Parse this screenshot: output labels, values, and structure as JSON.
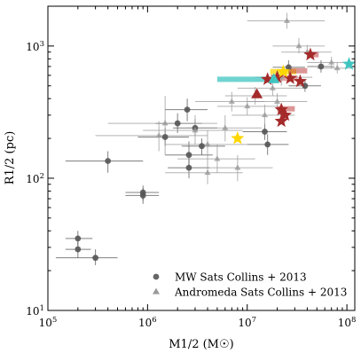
{
  "chart_data": {
    "type": "scatter",
    "xscale": "log",
    "yscale": "log",
    "xlim": [
      100000,
      120000000
    ],
    "ylim": [
      10,
      2000
    ],
    "xlabel": "M1/2 (M☉)",
    "ylabel": "R1/2 (pc)",
    "x_ticks": [
      {
        "value": 100000,
        "base": "10",
        "exp": "5"
      },
      {
        "value": 1000000,
        "base": "10",
        "exp": "6"
      },
      {
        "value": 10000000,
        "base": "10",
        "exp": "7"
      },
      {
        "value": 100000000,
        "base": "10",
        "exp": "8"
      }
    ],
    "y_ticks": [
      {
        "value": 10,
        "base": "10",
        "exp": "1"
      },
      {
        "value": 100,
        "base": "10",
        "exp": "2"
      },
      {
        "value": 1000,
        "base": "10",
        "exp": "3"
      }
    ],
    "legend": {
      "placement": "lower-right",
      "entries": [
        {
          "label": "MW Sats Collins + 2013",
          "marker": "circle",
          "color": "#666666"
        },
        {
          "label": "Andromeda Sats Collins + 2013",
          "marker": "triangle",
          "color": "#9a9a9a"
        }
      ]
    },
    "series": [
      {
        "name": "MW Sats Collins + 2013",
        "marker": "circle",
        "color": "#555555",
        "points": [
          {
            "x": 200000,
            "y": 35,
            "xerr": [
              150000,
              280000
            ],
            "yerr": [
              31,
              40
            ]
          },
          {
            "x": 200000,
            "y": 29,
            "xerr": [
              150000,
              270000
            ],
            "yerr": [
              25,
              33
            ]
          },
          {
            "x": 300000,
            "y": 25,
            "xerr": [
              120000,
              500000
            ],
            "yerr": [
              22,
              29
            ]
          },
          {
            "x": 400000,
            "y": 135,
            "xerr": [
              150000,
              900000
            ],
            "yerr": [
              110,
              160
            ]
          },
          {
            "x": 900000,
            "y": 78,
            "xerr": [
              600000,
              1300000
            ],
            "yerr": [
              68,
              88
            ]
          },
          {
            "x": 900000,
            "y": 74,
            "xerr": [
              600000,
              1300000
            ],
            "yerr": [
              64,
              84
            ]
          },
          {
            "x": 1500000,
            "y": 205,
            "xerr": [
              800000,
              2600000
            ],
            "yerr": [
              175,
              240
            ]
          },
          {
            "x": 2000000,
            "y": 260,
            "xerr": [
              1200000,
              3500000
            ],
            "yerr": [
              220,
              310
            ]
          },
          {
            "x": 2500000,
            "y": 330,
            "xerr": [
              1500000,
              4000000
            ],
            "yerr": [
              270,
              400
            ]
          },
          {
            "x": 2600000,
            "y": 150,
            "xerr": [
              1500000,
              4500000
            ],
            "yerr": [
              120,
              190
            ]
          },
          {
            "x": 2600000,
            "y": 120,
            "xerr": [
              1600000,
              4200000
            ],
            "yerr": [
              100,
              145
            ]
          },
          {
            "x": 3000000,
            "y": 240,
            "xerr": [
              1800000,
              5000000
            ],
            "yerr": [
              210,
              280
            ]
          },
          {
            "x": 3500000,
            "y": 175,
            "xerr": [
              2200000,
              6000000
            ],
            "yerr": [
              150,
              200
            ]
          },
          {
            "x": 15000000,
            "y": 225,
            "xerr": [
              9000000,
              25000000
            ],
            "yerr": [
              195,
              260
            ]
          },
          {
            "x": 16000000,
            "y": 180,
            "xerr": [
              10000000,
              26000000
            ],
            "yerr": [
              150,
              215
            ]
          },
          {
            "x": 26000000,
            "y": 690,
            "xerr": [
              18000000,
              38000000
            ],
            "yerr": [
              610,
              780
            ]
          },
          {
            "x": 38000000,
            "y": 500,
            "xerr": [
              26000000,
              55000000
            ],
            "yerr": [
              450,
              560
            ]
          },
          {
            "x": 55000000,
            "y": 700,
            "xerr": [
              40000000,
              75000000
            ],
            "yerr": [
              630,
              780
            ]
          }
        ]
      },
      {
        "name": "Andromeda Sats Collins + 2013",
        "marker": "triangle",
        "color": "#9a9a9a",
        "points": [
          {
            "x": 1500000,
            "y": 260,
            "xerr": [
              400000,
              5000000
            ],
            "yerr": [
              150,
              420
            ]
          },
          {
            "x": 1300000,
            "y": 210,
            "xerr": [
              300000,
              4000000
            ],
            "yerr": [
              160,
              270
            ]
          },
          {
            "x": 3000000,
            "y": 230,
            "xerr": [
              900000,
              9000000
            ],
            "yerr": [
              180,
              300
            ]
          },
          {
            "x": 4000000,
            "y": 180,
            "xerr": [
              1500000,
              10000000
            ],
            "yerr": [
              140,
              230
            ]
          },
          {
            "x": 5000000,
            "y": 140,
            "xerr": [
              2000000,
              12000000
            ],
            "yerr": [
              110,
              180
            ]
          },
          {
            "x": 4000000,
            "y": 110,
            "xerr": [
              1500000,
              9000000
            ],
            "yerr": [
              90,
              140
            ]
          },
          {
            "x": 6000000,
            "y": 240,
            "xerr": [
              2500000,
              14000000
            ],
            "yerr": [
              190,
              300
            ]
          },
          {
            "x": 7000000,
            "y": 380,
            "xerr": [
              3000000,
              15000000
            ],
            "yerr": [
              320,
              450
            ]
          },
          {
            "x": 8000000,
            "y": 120,
            "xerr": [
              3000000,
              18000000
            ],
            "yerr": [
              95,
              150
            ]
          },
          {
            "x": 10000000,
            "y": 350,
            "xerr": [
              5000000,
              20000000
            ],
            "yerr": [
              300,
              410
            ]
          },
          {
            "x": 12000000,
            "y": 420,
            "xerr": [
              6000000,
              25000000
            ],
            "yerr": [
              360,
              490
            ]
          },
          {
            "x": 15000000,
            "y": 300,
            "xerr": [
              7000000,
              30000000
            ],
            "yerr": [
              250,
              360
            ]
          },
          {
            "x": 18000000,
            "y": 480,
            "xerr": [
              8000000,
              40000000
            ],
            "yerr": [
              420,
              550
            ]
          },
          {
            "x": 20000000,
            "y": 380,
            "xerr": [
              10000000,
              40000000
            ],
            "yerr": [
              330,
              440
            ]
          },
          {
            "x": 22000000,
            "y": 580,
            "xerr": [
              12000000,
              45000000
            ],
            "yerr": [
              500,
              660
            ]
          },
          {
            "x": 25000000,
            "y": 1550,
            "xerr": [
              10000000,
              60000000
            ],
            "yerr": [
              1350,
              1780
            ]
          },
          {
            "x": 33000000,
            "y": 1000,
            "xerr": [
              18000000,
              60000000
            ],
            "yerr": [
              880,
              1150
            ]
          },
          {
            "x": 40000000,
            "y": 900,
            "xerr": [
              22000000,
              70000000
            ],
            "yerr": [
              790,
              1020
            ]
          },
          {
            "x": 70000000,
            "y": 750,
            "xerr": [
              40000000,
              100000000
            ],
            "yerr": [
              680,
              830
            ]
          },
          {
            "x": 80000000,
            "y": 680,
            "xerr": [
              50000000,
              110000000
            ],
            "yerr": [
              620,
              750
            ]
          }
        ]
      },
      {
        "marker": "star",
        "color": "#a52a2a",
        "points": [
          {
            "x": 16000000,
            "y": 560
          },
          {
            "x": 20000000,
            "y": 580
          },
          {
            "x": 27000000,
            "y": 570
          },
          {
            "x": 34000000,
            "y": 540
          },
          {
            "x": 43000000,
            "y": 860
          },
          {
            "x": 22000000,
            "y": 330
          },
          {
            "x": 24000000,
            "y": 300
          },
          {
            "x": 22000000,
            "y": 270
          }
        ]
      },
      {
        "marker": "triangle",
        "color": "#a52a2a",
        "points": [
          {
            "x": 12500000,
            "y": 430
          }
        ]
      },
      {
        "marker": "star",
        "color": "#ffd700",
        "points": [
          {
            "x": 8000000,
            "y": 200
          },
          {
            "x": 23000000,
            "y": 640
          }
        ]
      },
      {
        "marker": "star",
        "color": "#40c4c0",
        "points": [
          {
            "x": 105000000,
            "y": 730
          }
        ]
      },
      {
        "marker": "triangle",
        "color": "#40c4c0",
        "points": [
          {
            "x": 18500000,
            "y": 560
          }
        ]
      },
      {
        "marker": "hbar",
        "points": [
          {
            "x0": 5000000,
            "x1": 20000000,
            "y": 560,
            "color": "#40c4c0",
            "alpha": 0.75
          },
          {
            "x0": 17000000,
            "x1": 31000000,
            "y": 640,
            "color": "#ffd700",
            "alpha": 0.75
          },
          {
            "x0": 26000000,
            "x1": 40000000,
            "y": 650,
            "color": "#c04040",
            "alpha": 0.55
          },
          {
            "x0": 20000000,
            "x1": 30000000,
            "y": 335,
            "color": "#c04040",
            "alpha": 0.55
          },
          {
            "x0": 22000000,
            "x1": 32000000,
            "y": 570,
            "color": "#c04040",
            "alpha": 0.45
          },
          {
            "x0": 40000000,
            "x1": 52000000,
            "y": 860,
            "color": "#c04040",
            "alpha": 0.55
          }
        ]
      }
    ]
  }
}
